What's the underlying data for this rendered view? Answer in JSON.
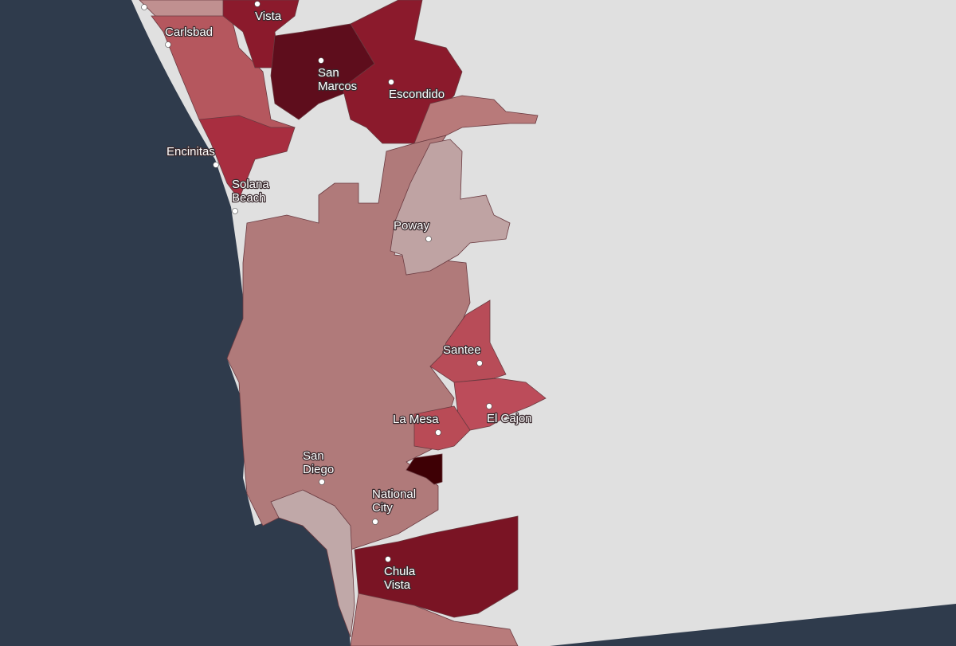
{
  "cities": [
    {
      "lines": [
        "Vista"
      ]
    },
    {
      "lines": [
        "Carlsbad"
      ]
    },
    {
      "lines": [
        "San",
        "Marcos"
      ]
    },
    {
      "lines": [
        "Escondido"
      ]
    },
    {
      "lines": [
        "Encinitas"
      ]
    },
    {
      "lines": [
        "Solana",
        "Beach"
      ]
    },
    {
      "lines": [
        "Poway"
      ]
    },
    {
      "lines": [
        "Santee"
      ]
    },
    {
      "lines": [
        "El Cajon"
      ]
    },
    {
      "lines": [
        "La Mesa"
      ]
    },
    {
      "lines": [
        "San",
        "Diego"
      ]
    },
    {
      "lines": [
        "National",
        "City"
      ]
    },
    {
      "lines": [
        "Chula",
        "Vista"
      ]
    }
  ]
}
